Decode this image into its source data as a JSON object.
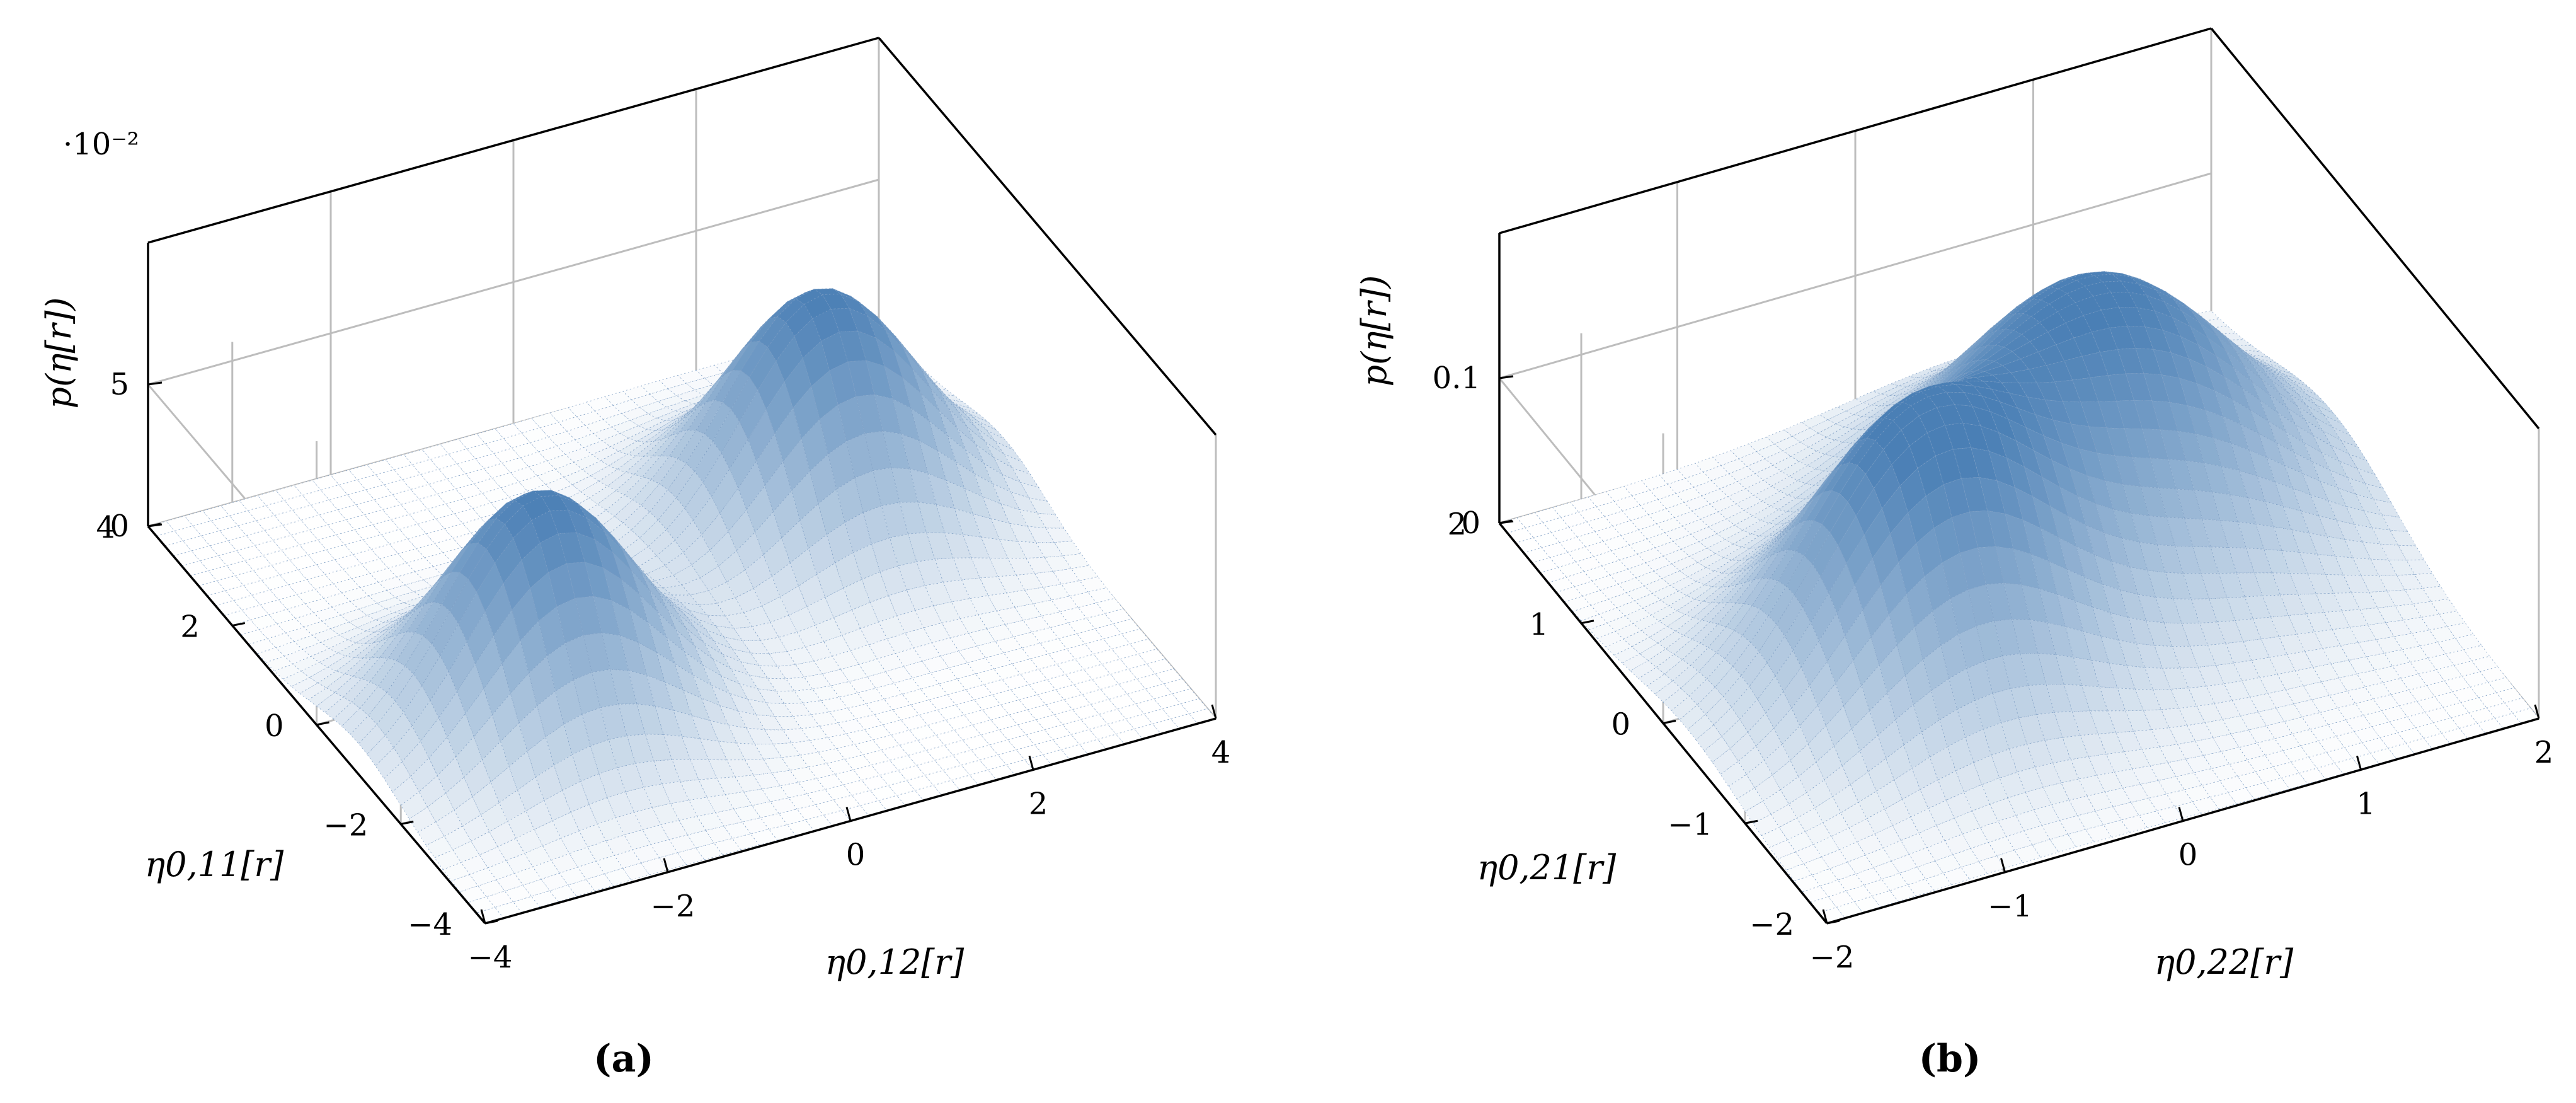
{
  "chart_data": [
    {
      "type": "surface",
      "caption": "(a)",
      "scale_note": "·10⁻²",
      "zlabel": "p(η[r])",
      "xlabel": "η0,12[r]",
      "ylabel": "η0,11[r]",
      "xlim": [
        -4,
        4
      ],
      "ylim": [
        -4,
        4
      ],
      "zlim": [
        0,
        10
      ],
      "xticks": [
        -4,
        -2,
        0,
        2,
        4
      ],
      "xtick_labels": [
        "−4",
        "−2",
        "0",
        "2",
        "4"
      ],
      "yticks": [
        -4,
        -2,
        0,
        2,
        4
      ],
      "ytick_labels": [
        "−4",
        "−2",
        "0",
        "2",
        "4"
      ],
      "zticks": [
        0,
        5
      ],
      "ztick_labels": [
        "0",
        "5"
      ],
      "grid": true,
      "components": [
        {
          "weight": 0.5,
          "mean": [
            -2,
            -1
          ],
          "sd": [
            1.0,
            1.0
          ]
        },
        {
          "weight": 0.5,
          "mean": [
            2,
            1
          ],
          "sd": [
            1.0,
            1.0
          ]
        }
      ],
      "peak_values": [
        8.0,
        8.0
      ],
      "colormap": [
        "#ffffff",
        "#4a7fb5"
      ]
    },
    {
      "type": "surface",
      "caption": "(b)",
      "scale_note": "",
      "zlabel": "p(η[r])",
      "xlabel": "η0,22[r]",
      "ylabel": "η0,21[r]",
      "xlim": [
        -2,
        2
      ],
      "ylim": [
        -2,
        2
      ],
      "zlim": [
        0,
        0.2
      ],
      "xticks": [
        -2,
        -1,
        0,
        1,
        2
      ],
      "xtick_labels": [
        "−2",
        "−1",
        "0",
        "1",
        "2"
      ],
      "yticks": [
        -2,
        -1,
        0,
        1,
        2
      ],
      "ytick_labels": [
        "−2",
        "−1",
        "0",
        "1",
        "2"
      ],
      "zticks": [
        0,
        0.1
      ],
      "ztick_labels": [
        "0",
        "0.1"
      ],
      "grid": true,
      "components": [
        {
          "weight": 0.5,
          "mean": [
            -0.7,
            -0.3
          ],
          "sd": [
            0.6,
            0.6
          ]
        },
        {
          "weight": 0.5,
          "mean": [
            0.7,
            0.5
          ],
          "sd": [
            0.75,
            0.75
          ]
        }
      ],
      "peak_values": [
        0.17,
        0.17
      ],
      "colormap": [
        "#ffffff",
        "#4a7fb5"
      ]
    }
  ]
}
